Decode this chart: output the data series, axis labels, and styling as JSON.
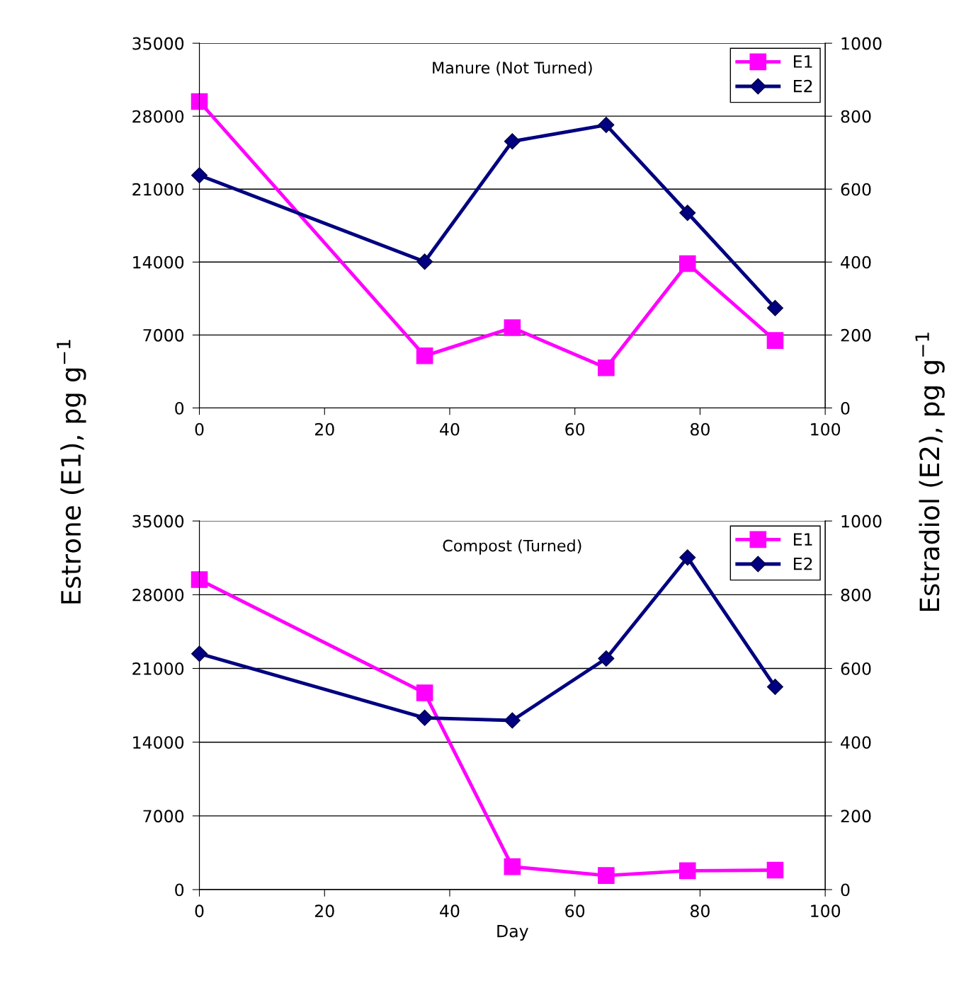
{
  "chart_data": [
    {
      "type": "line",
      "title": "Manure (Not Turned)",
      "ylabel": "Estrone (E1), pg g$^{−1}$",
      "y2label": "Estradiol (E2), pg g$^{−1}$",
      "series": [
        {
          "name": "E1",
          "color": "#ff00ff",
          "marker": "square",
          "x": [
            0,
            36,
            50,
            65,
            78,
            92
          ],
          "values": [
            29400,
            5000,
            7700,
            3850,
            13850,
            6470
          ]
        },
        {
          "name": "E2",
          "color": "#000080",
          "marker": "diamond",
          "axis": "y2",
          "x": [
            0,
            36,
            50,
            65,
            78,
            92
          ],
          "values": [
            638,
            401,
            731,
            776,
            535,
            274
          ]
        }
      ],
      "xlim": [
        0,
        100
      ],
      "xticks": [
        0,
        20,
        40,
        60,
        80,
        100
      ],
      "ylim": [
        0,
        35000
      ],
      "yticks": [
        0,
        7000,
        14000,
        21000,
        28000,
        35000
      ],
      "y2lim": [
        0,
        1000
      ],
      "y2ticks": [
        0,
        200,
        400,
        600,
        800,
        1000
      ],
      "grid": "y",
      "legend": "top right",
      "line_style": "solid"
    },
    {
      "type": "line",
      "title": "Compost (Turned)",
      "xlabel": "Day",
      "series": [
        {
          "name": "E1",
          "color": "#ff00ff",
          "marker": "square",
          "x": [
            0,
            36,
            50,
            65,
            78,
            92
          ],
          "values": [
            29430,
            18680,
            2180,
            1340,
            1790,
            1850
          ]
        },
        {
          "name": "E2",
          "color": "#000080",
          "marker": "diamond",
          "axis": "y2",
          "x": [
            0,
            36,
            50,
            65,
            78,
            92
          ],
          "values": [
            640,
            466,
            459,
            627,
            901,
            550
          ]
        }
      ],
      "xlim": [
        0,
        100
      ],
      "xticks": [
        0,
        20,
        40,
        60,
        80,
        100
      ],
      "ylim": [
        0,
        35000
      ],
      "yticks": [
        0,
        7000,
        14000,
        21000,
        28000,
        35000
      ],
      "y2lim": [
        0,
        1000
      ],
      "y2ticks": [
        0,
        200,
        400,
        600,
        800,
        1000
      ],
      "grid": "y",
      "legend": "top right",
      "line_style": "solid"
    }
  ]
}
